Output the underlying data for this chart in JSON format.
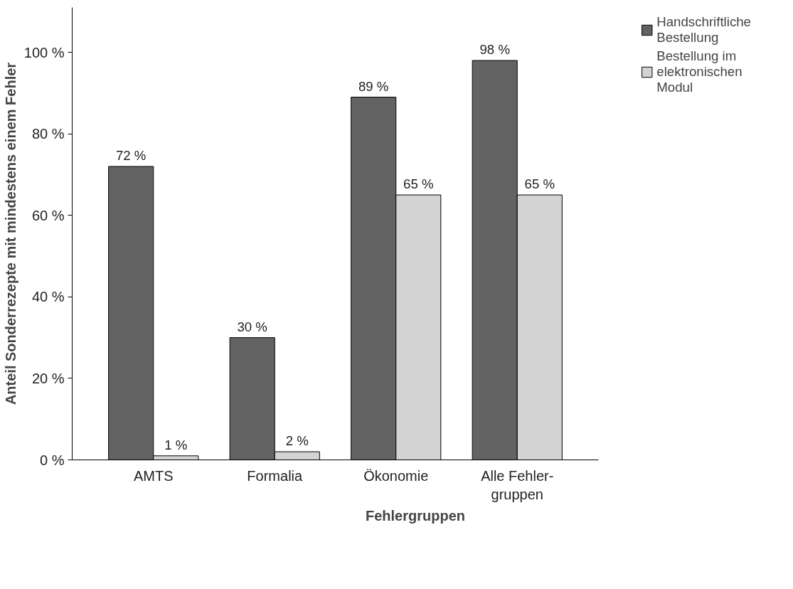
{
  "chart_data": {
    "type": "bar",
    "xlabel": "Fehlergruppen",
    "ylabel": "Anteil Sonderrezepte mit mindestens einem Fehler",
    "categories": [
      "AMTS",
      "Formalia",
      "Ökonomie",
      "Alle Fehler-\ngruppen"
    ],
    "series": [
      {
        "name": "Handschriftliche\nBestellung",
        "color": "#636363",
        "values": [
          72,
          30,
          89,
          98
        ]
      },
      {
        "name": "Bestellung im\nelektronischen\nModul",
        "color": "#d3d3d3",
        "values": [
          1,
          2,
          65,
          65
        ]
      }
    ],
    "ylim": [
      0,
      111
    ],
    "yticks": [
      {
        "value": 0,
        "label": "0 %"
      },
      {
        "value": 20,
        "label": "20 %"
      },
      {
        "value": 40,
        "label": "40 %"
      },
      {
        "value": 60,
        "label": "60 %"
      },
      {
        "value": 80,
        "label": "80 %"
      },
      {
        "value": 100,
        "label": "100 %"
      }
    ],
    "value_labels": [
      [
        "72 %",
        "30 %",
        "89 %",
        "98 %"
      ],
      [
        "1 %",
        "2 %",
        "65 %",
        "65 %"
      ]
    ],
    "grid": false,
    "legend": "top right"
  }
}
